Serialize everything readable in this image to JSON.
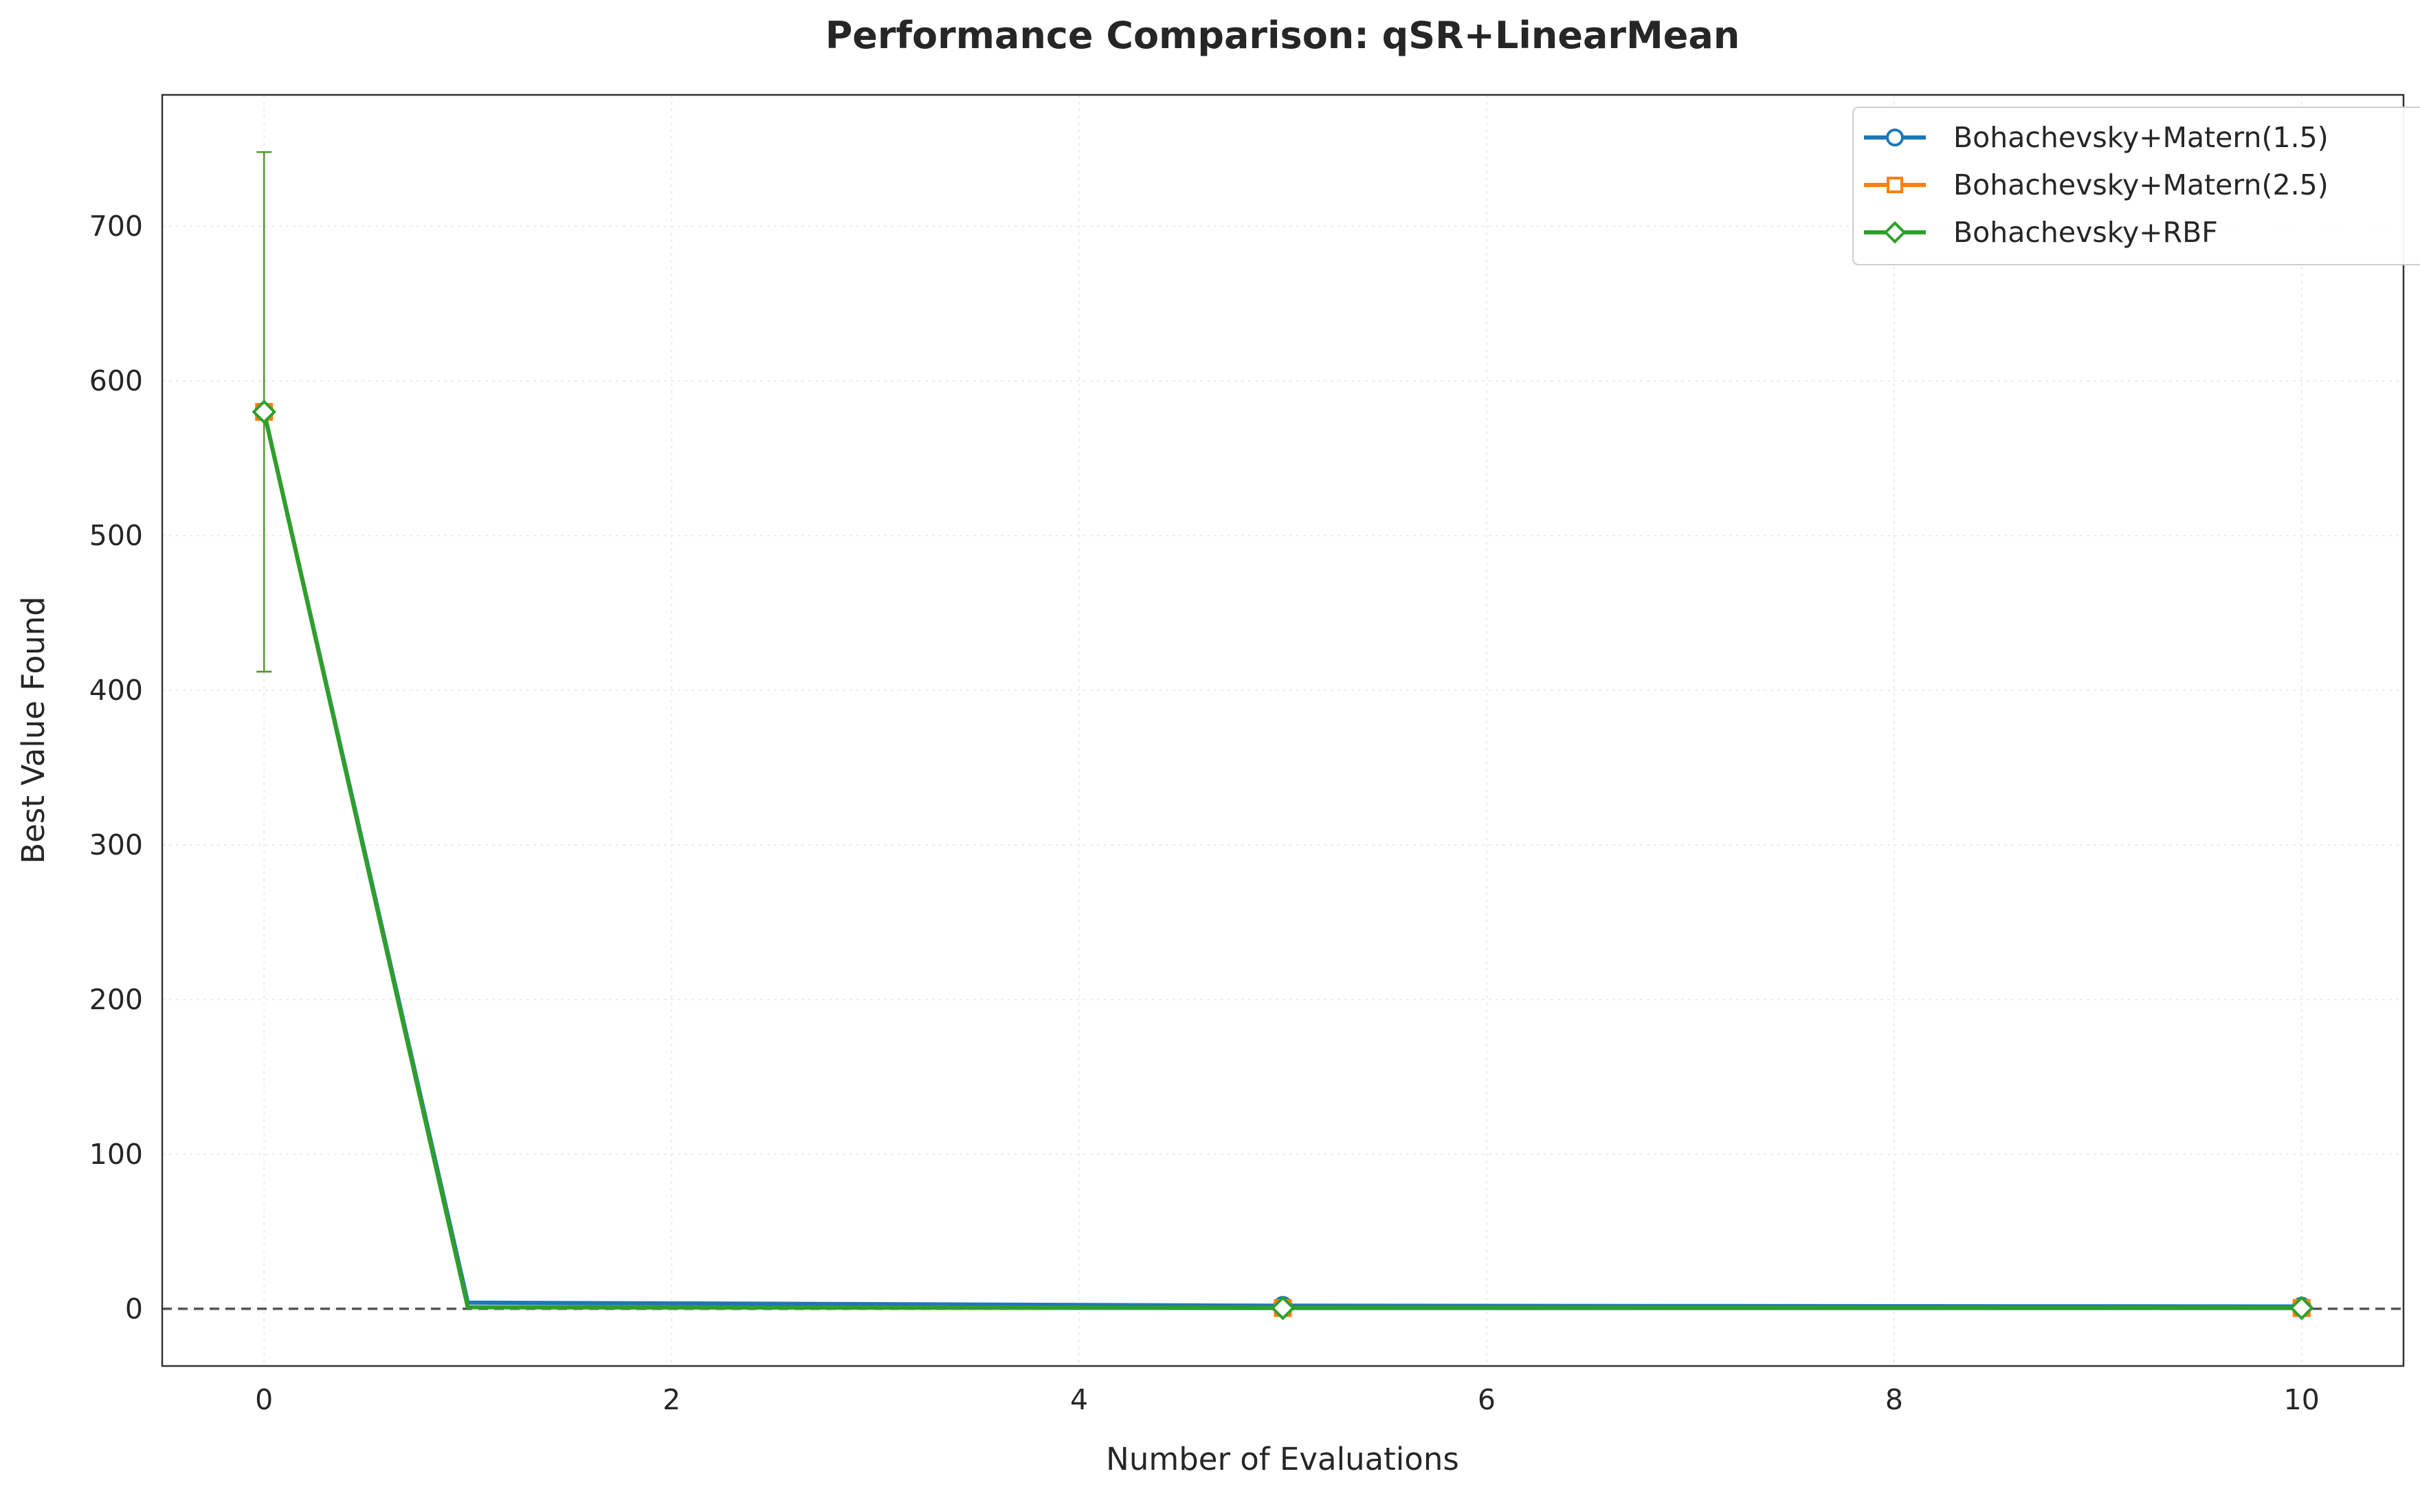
{
  "chart_data": {
    "type": "line",
    "title": "Performance Comparison: qSR+LinearMean",
    "xlabel": "Number of Evaluations",
    "ylabel": "Best Value Found",
    "xlim": [
      -0.5,
      10.5
    ],
    "ylim": [
      -37,
      785
    ],
    "xticks": [
      0,
      2,
      4,
      6,
      8,
      10
    ],
    "yticks": [
      0,
      100,
      200,
      300,
      400,
      500,
      600,
      700
    ],
    "grid": true,
    "legend_position": "top-right",
    "reference_line": {
      "y": 0,
      "style": "dashed",
      "color": "#555555"
    },
    "series": [
      {
        "name": "Bohachevsky+Matern(1.5)",
        "color": "#1f77b4",
        "marker": "circle",
        "x": [
          0,
          1,
          5,
          10
        ],
        "y": [
          580,
          4,
          2,
          1.5
        ],
        "marker_x": [
          0,
          5,
          10
        ],
        "error_bars": [
          {
            "x": 0,
            "low": 412,
            "high": 748
          }
        ]
      },
      {
        "name": "Bohachevsky+Matern(2.5)",
        "color": "#ff7f0e",
        "marker": "square",
        "x": [
          0,
          1,
          5,
          10
        ],
        "y": [
          580,
          1,
          0.5,
          0.5
        ],
        "marker_x": [
          0,
          5,
          10
        ],
        "error_bars": [
          {
            "x": 0,
            "low": 412,
            "high": 748
          }
        ]
      },
      {
        "name": "Bohachevsky+RBF",
        "color": "#2ca02c",
        "marker": "diamond",
        "x": [
          0,
          1,
          5,
          10
        ],
        "y": [
          580,
          1,
          0.5,
          0.5
        ],
        "marker_x": [
          0,
          5,
          10
        ],
        "error_bars": [
          {
            "x": 0,
            "low": 412,
            "high": 748
          }
        ]
      }
    ]
  }
}
